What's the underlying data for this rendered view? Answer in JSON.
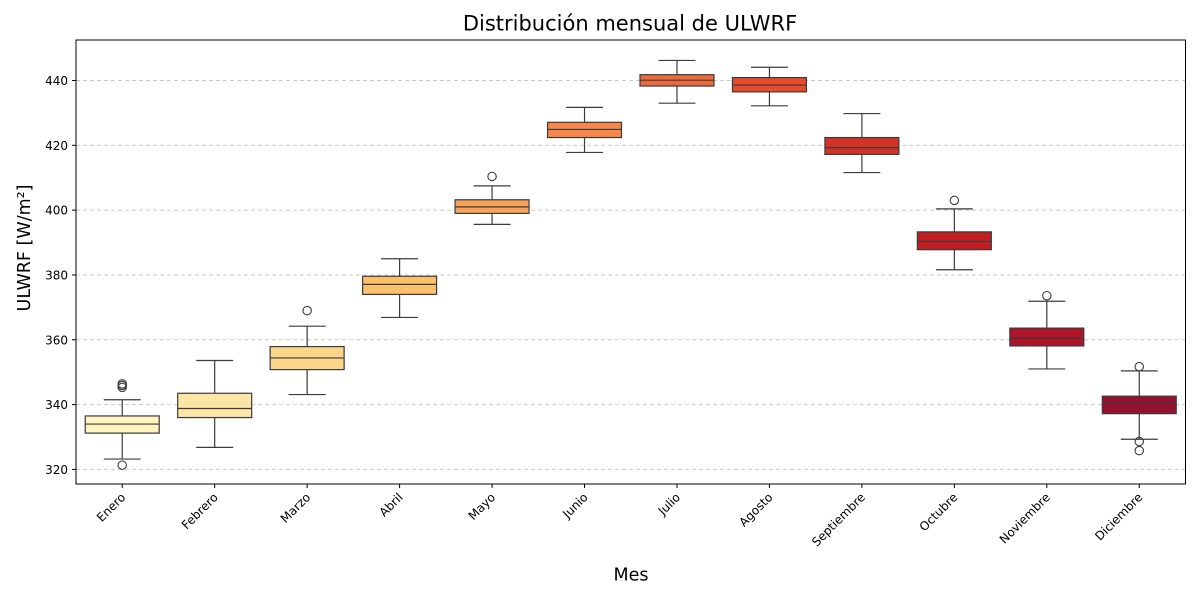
{
  "chart_data": {
    "type": "box",
    "title": "Distribución mensual de ULWRF",
    "xlabel": "Mes",
    "ylabel": "ULWRF [W/m²]",
    "ylim": [
      315.5,
      452.5
    ],
    "yticks": [
      320,
      340,
      360,
      380,
      400,
      420,
      440
    ],
    "grid": "y-dashed",
    "categories": [
      "Enero",
      "Febrero",
      "Marzo",
      "Abril",
      "Mayo",
      "Junio",
      "Julio",
      "Agosto",
      "Septiembre",
      "Octubre",
      "Noviembre",
      "Diciembre"
    ],
    "boxes": [
      {
        "whisker_low": 323.2,
        "q1": 331.2,
        "median": 334.0,
        "q3": 336.5,
        "whisker_high": 341.5,
        "fliers": [
          321.3,
          345.3,
          345.9,
          346.4
        ]
      },
      {
        "whisker_low": 326.8,
        "q1": 336.0,
        "median": 338.8,
        "q3": 343.5,
        "whisker_high": 353.6,
        "fliers": []
      },
      {
        "whisker_low": 343.1,
        "q1": 350.8,
        "median": 354.4,
        "q3": 357.9,
        "whisker_high": 364.2,
        "fliers": [
          369.0
        ]
      },
      {
        "whisker_low": 366.9,
        "q1": 374.0,
        "median": 377.1,
        "q3": 379.6,
        "whisker_high": 385.0,
        "fliers": []
      },
      {
        "whisker_low": 395.6,
        "q1": 399.0,
        "median": 401.0,
        "q3": 403.2,
        "whisker_high": 407.5,
        "fliers": [
          410.4
        ]
      },
      {
        "whisker_low": 417.8,
        "q1": 422.4,
        "median": 424.9,
        "q3": 427.1,
        "whisker_high": 431.7,
        "fliers": []
      },
      {
        "whisker_low": 433.0,
        "q1": 438.3,
        "median": 440.1,
        "q3": 441.8,
        "whisker_high": 446.2,
        "fliers": []
      },
      {
        "whisker_low": 432.2,
        "q1": 436.5,
        "median": 438.6,
        "q3": 440.9,
        "whisker_high": 444.1,
        "fliers": []
      },
      {
        "whisker_low": 411.6,
        "q1": 417.2,
        "median": 419.3,
        "q3": 422.4,
        "whisker_high": 429.8,
        "fliers": []
      },
      {
        "whisker_low": 381.6,
        "q1": 387.8,
        "median": 390.3,
        "q3": 393.3,
        "whisker_high": 400.4,
        "fliers": [
          403.0
        ]
      },
      {
        "whisker_low": 351.0,
        "q1": 358.1,
        "median": 360.5,
        "q3": 363.6,
        "whisker_high": 371.9,
        "fliers": [
          373.6
        ]
      },
      {
        "whisker_low": 329.3,
        "q1": 337.2,
        "median": 340.5,
        "q3": 342.6,
        "whisker_high": 350.4,
        "fliers": [
          325.8,
          328.6,
          351.7
        ]
      }
    ],
    "colors": [
      "#fff4c0",
      "#fce6a7",
      "#fbd68a",
      "#fac06b",
      "#f8a258",
      "#f6864a",
      "#ef6a3b",
      "#e64b2c",
      "#d33227",
      "#c21e22",
      "#b01428",
      "#96102f"
    ]
  }
}
